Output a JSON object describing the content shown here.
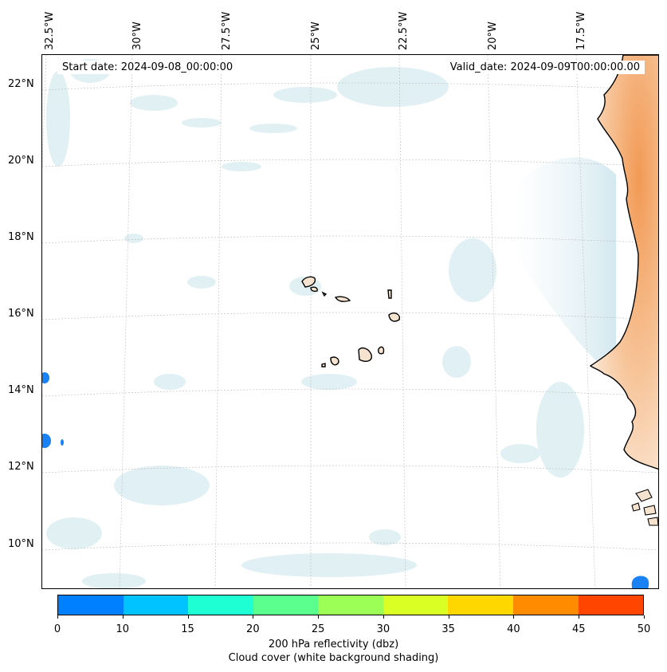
{
  "header": {
    "start_date": "Start date: 2024-09-08_00:00:00",
    "valid_date": "Valid_date: 2024-09-09T00:00:00.00"
  },
  "map": {
    "lon_labels": [
      "32.5°W",
      "30°W",
      "27.5°W",
      "25°W",
      "22.5°W",
      "20°W",
      "17.5°W"
    ],
    "lat_labels": [
      "22°N",
      "20°N",
      "18°N",
      "16°N",
      "14°N",
      "12°N",
      "10°N"
    ],
    "coast_color": "#000000",
    "land_color": "#f6e3cf",
    "cloud_color": "#d7ebf0",
    "ocean_color": "#ffffff"
  },
  "colorbar": {
    "ticks": [
      "0",
      "10",
      "15",
      "20",
      "25",
      "30",
      "35",
      "40",
      "45",
      "50"
    ],
    "colors": [
      "#007fff",
      "#00c3ff",
      "#1fffd4",
      "#5bff8e",
      "#9bff56",
      "#d9ff24",
      "#ffd700",
      "#ff8c00",
      "#ff4500"
    ],
    "label_line1": "200 hPa reflectivity (dbz)",
    "label_line2": "Cloud cover (white background shading)"
  }
}
